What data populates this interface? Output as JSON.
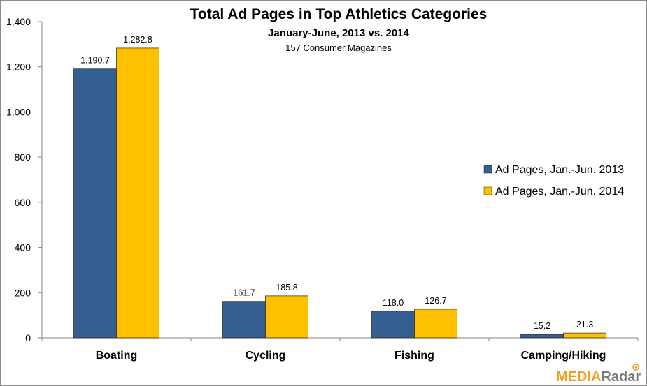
{
  "chart_data": {
    "type": "bar",
    "title": "Total Ad Pages in Top Athletics Categories",
    "subtitle": "January-June, 2013 vs. 2014",
    "note": "157 Consumer Magazines",
    "categories": [
      "Boating",
      "Cycling",
      "Fishing",
      "Camping/Hiking"
    ],
    "series": [
      {
        "name": "Ad Pages, Jan.-Jun. 2013",
        "color": "#365f91",
        "values": [
          1190.7,
          161.7,
          118.0,
          15.2
        ],
        "labels": [
          "1,190.7",
          "161.7",
          "118.0",
          "15.2"
        ]
      },
      {
        "name": "Ad Pages, Jan.-Jun. 2014",
        "color": "#ffc000",
        "values": [
          1282.8,
          185.8,
          126.7,
          21.3
        ],
        "labels": [
          "1,282.8",
          "185.8",
          "126.7",
          "21.3"
        ]
      }
    ],
    "ylim": [
      0,
      1400
    ],
    "yticks": [
      "0",
      "200",
      "400",
      "600",
      "800",
      "1,000",
      "1,200",
      "1,400"
    ],
    "grid": false,
    "legend_position": "right"
  },
  "branding": {
    "logo_part1": "MEDIA",
    "logo_part2": "Radar",
    "accent": "#f0a020"
  }
}
